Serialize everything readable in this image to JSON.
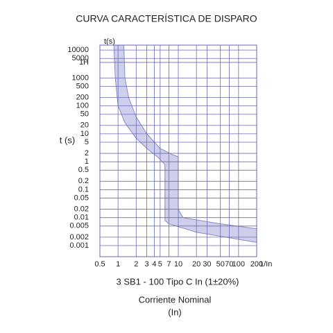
{
  "chart_data": {
    "type": "trip-curve",
    "title": "CURVA CARACTERÍSTICA DE DISPARO",
    "subtitle": "3 SB1 - 100 Tipo C In (1±20%)",
    "x_label": "Corriente Nominal",
    "x_label_unit": "(In)",
    "x_axis_end_label": "1/In",
    "y_label": "t (s)",
    "y_axis_top_label": "t(s)",
    "log_x": true,
    "log_y": true,
    "grid": true,
    "grid_color": "#6a6ab4",
    "band_fill": "#cfcfec",
    "band_stroke": "#8a8ac8",
    "xlim": [
      0.5,
      200
    ],
    "ylim": [
      0.0004,
      15000
    ],
    "xticks": [
      0.5,
      1,
      2,
      3,
      4,
      5,
      7,
      10,
      20,
      30,
      50,
      70,
      100,
      200
    ],
    "yticks": [
      10000,
      5000,
      {
        "value": 3600,
        "label": "1H"
      },
      1000,
      500,
      200,
      100,
      50,
      20,
      10,
      5,
      2,
      1,
      0.5,
      0.2,
      0.1,
      0.05,
      0.02,
      0.01,
      0.005,
      0.002,
      0.001
    ],
    "curve_upper": {
      "x": [
        1.25,
        1.3,
        1.5,
        2,
        3,
        5,
        8,
        10,
        10,
        12,
        50,
        200
      ],
      "y": [
        15000,
        1000,
        200,
        40,
        10,
        3,
        1.8,
        1.5,
        0.02,
        0.01,
        0.006,
        0.004
      ]
    },
    "curve_lower": {
      "x": [
        0.85,
        0.9,
        1,
        1.3,
        2,
        3,
        4.5,
        6,
        6,
        7,
        20,
        200
      ],
      "y": [
        15000,
        1000,
        100,
        25,
        7,
        3,
        1.5,
        0.8,
        0.008,
        0.006,
        0.003,
        0.0013
      ]
    }
  }
}
